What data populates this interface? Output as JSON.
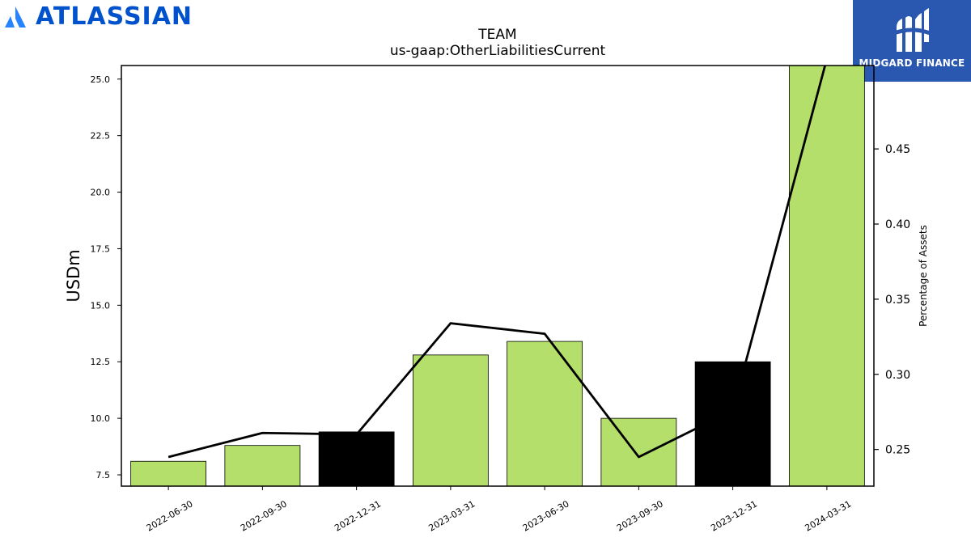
{
  "brand": {
    "company_logo_text": "ATLASSIAN",
    "company_color": "#0052CC",
    "publisher_logo_text": "MIDGARD FINANCE",
    "publisher_bg": "#2A57B0"
  },
  "chart_data": {
    "type": "bar",
    "title": "TEAM",
    "subtitle": "us-gaap:OtherLiabilitiesCurrent",
    "ylabel": "USDm",
    "y2label": "Percentage of Assets",
    "categories": [
      "2022-06-30",
      "2022-09-30",
      "2022-12-31",
      "2023-03-31",
      "2023-06-30",
      "2023-09-30",
      "2023-12-31",
      "2024-03-31"
    ],
    "series": [
      {
        "type": "bar",
        "axis": "left",
        "values": [
          8.1,
          8.8,
          9.4,
          12.8,
          13.4,
          10.0,
          12.5,
          25.7
        ],
        "colors": [
          "#B3DF6A",
          "#B3DF6A",
          "#000000",
          "#B3DF6A",
          "#B3DF6A",
          "#B3DF6A",
          "#000000",
          "#B3DF6A"
        ]
      },
      {
        "type": "line",
        "axis": "right",
        "color": "#000000",
        "values": [
          0.245,
          0.261,
          0.26,
          0.334,
          0.327,
          0.245,
          0.276,
          0.51
        ]
      }
    ],
    "ylim": [
      7.0,
      25.6
    ],
    "yticks": [
      7.5,
      10.0,
      12.5,
      15.0,
      17.5,
      20.0,
      22.5,
      25.0
    ],
    "ytick_labels": [
      "7.5",
      "10.0",
      "12.5",
      "15.0",
      "17.5",
      "20.0",
      "22.5",
      "25.0"
    ],
    "y2lim": [
      0.2256,
      0.5055
    ],
    "y2ticks": [
      0.25,
      0.3,
      0.35,
      0.4,
      0.45
    ],
    "y2tick_labels": [
      "0.25",
      "0.30",
      "0.35",
      "0.40",
      "0.45"
    ],
    "grid": false,
    "legend": "none"
  }
}
